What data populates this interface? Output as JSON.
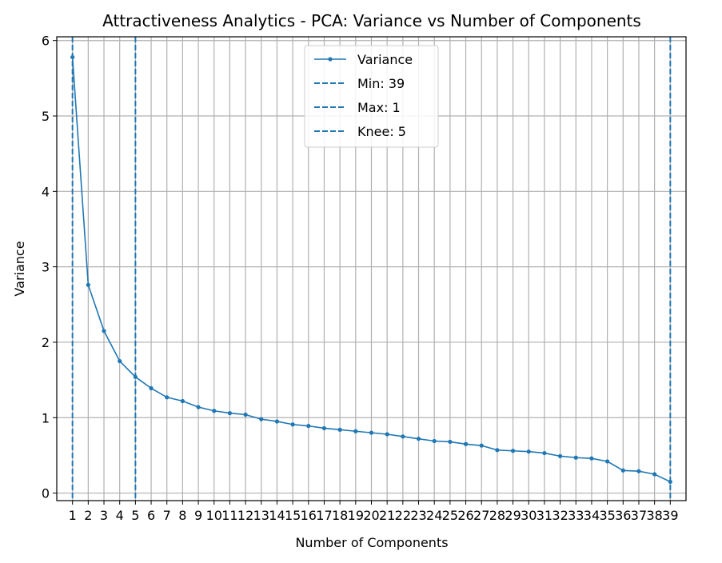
{
  "chart_data": {
    "type": "line",
    "title": "Attractiveness Analytics - PCA: Variance vs Number of Components",
    "xlabel": "Number of Components",
    "ylabel": "Variance",
    "x": [
      1,
      2,
      3,
      4,
      5,
      6,
      7,
      8,
      9,
      10,
      11,
      12,
      13,
      14,
      15,
      16,
      17,
      18,
      19,
      20,
      21,
      22,
      23,
      24,
      25,
      26,
      27,
      28,
      29,
      30,
      31,
      32,
      33,
      34,
      35,
      36,
      37,
      38,
      39
    ],
    "series": [
      {
        "name": "Variance",
        "color": "#1f77b4",
        "values": [
          5.78,
          2.76,
          2.15,
          1.75,
          1.54,
          1.39,
          1.27,
          1.22,
          1.14,
          1.09,
          1.06,
          1.04,
          0.98,
          0.95,
          0.91,
          0.89,
          0.86,
          0.84,
          0.82,
          0.8,
          0.78,
          0.75,
          0.72,
          0.69,
          0.68,
          0.65,
          0.63,
          0.57,
          0.56,
          0.55,
          0.53,
          0.49,
          0.47,
          0.46,
          0.42,
          0.3,
          0.29,
          0.25,
          0.15
        ]
      }
    ],
    "vlines": [
      {
        "name": "Min: 39",
        "x": 39,
        "color": "#1f77b4",
        "style": "dashed"
      },
      {
        "name": "Max: 1",
        "x": 1,
        "color": "#1f77b4",
        "style": "dashed"
      },
      {
        "name": "Knee: 5",
        "x": 5,
        "color": "#1f77b4",
        "style": "dashed"
      }
    ],
    "xlim": [
      0,
      40
    ],
    "ylim": [
      -0.1,
      6.05
    ],
    "yticks": [
      0,
      1,
      2,
      3,
      4,
      5,
      6
    ],
    "grid": true,
    "legend_position": "top-center"
  }
}
